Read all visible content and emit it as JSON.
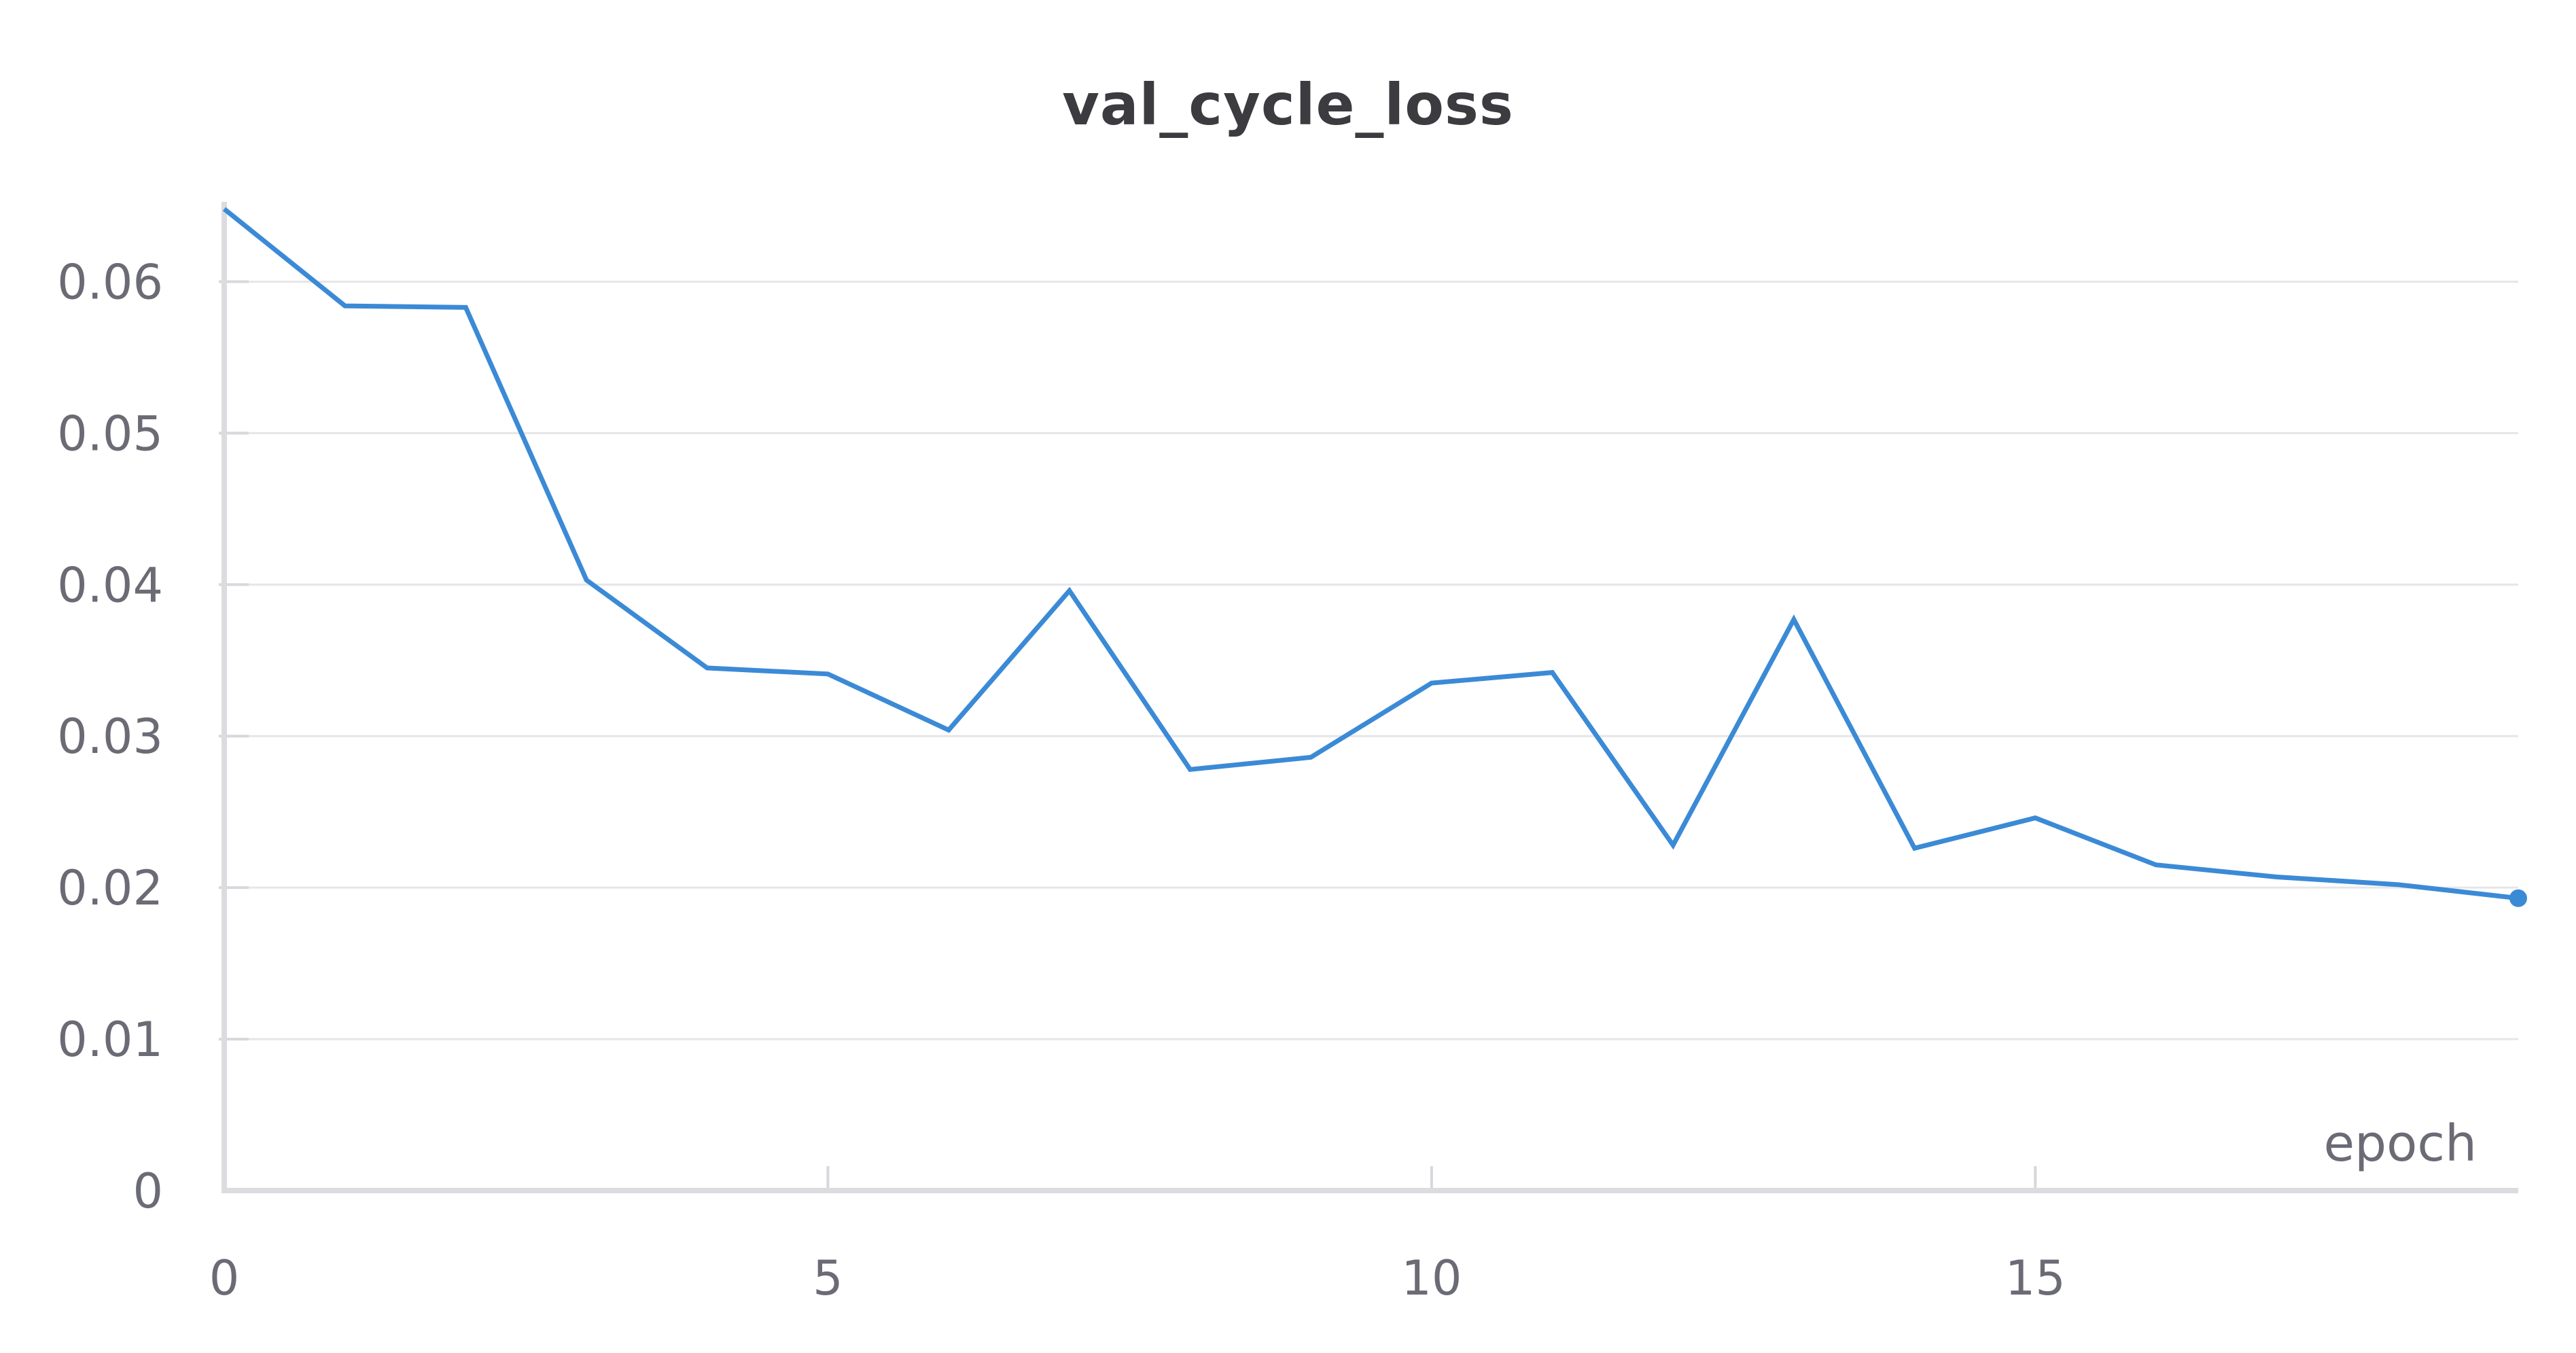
{
  "chart_data": {
    "type": "line",
    "title": "val_cycle_loss",
    "xlabel": "epoch",
    "ylabel": "",
    "xlim": [
      0,
      19
    ],
    "ylim": [
      0,
      0.065
    ],
    "x_ticks": [
      0,
      5,
      10,
      15
    ],
    "y_ticks": [
      0,
      0.01,
      0.02,
      0.03,
      0.04,
      0.05,
      0.06
    ],
    "y_tick_labels": [
      "0",
      "0.01",
      "0.02",
      "0.03",
      "0.04",
      "0.05",
      "0.06"
    ],
    "x_tick_labels": [
      "0",
      "5",
      "10",
      "15"
    ],
    "grid": true,
    "line_color": "#3b8ad6",
    "series": [
      {
        "x": [
          0,
          1,
          2,
          3,
          4,
          5,
          6,
          7,
          8,
          9,
          10,
          11,
          12,
          13,
          14,
          15,
          16,
          17,
          18,
          19
        ],
        "values": [
          0.0648,
          0.0584,
          0.0583,
          0.0403,
          0.0345,
          0.0341,
          0.0304,
          0.0396,
          0.0278,
          0.0286,
          0.0335,
          0.0342,
          0.0228,
          0.0377,
          0.0226,
          0.0246,
          0.0215,
          0.0207,
          0.0202,
          0.0193
        ]
      }
    ]
  }
}
